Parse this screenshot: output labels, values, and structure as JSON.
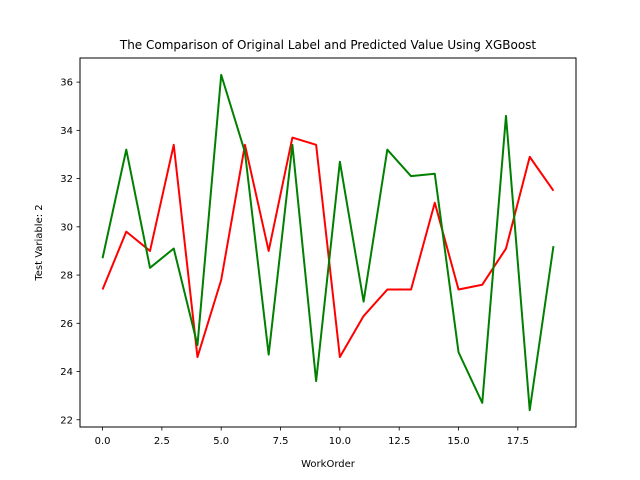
{
  "chart_data": {
    "type": "line",
    "title": "The Comparison of Original Label and Predicted Value Using XGBoost",
    "xlabel": "WorkOrder",
    "ylabel": "Test Variable: 2",
    "xlim": [
      -0.95,
      19.95
    ],
    "ylim": [
      21.7,
      37.0
    ],
    "xticks": [
      0.0,
      2.5,
      5.0,
      7.5,
      10.0,
      12.5,
      15.0,
      17.5
    ],
    "xtick_labels": [
      "0.0",
      "2.5",
      "5.0",
      "7.5",
      "10.0",
      "12.5",
      "15.0",
      "17.5"
    ],
    "yticks": [
      22,
      24,
      26,
      28,
      30,
      32,
      34,
      36
    ],
    "ytick_labels": [
      "22",
      "24",
      "26",
      "28",
      "30",
      "32",
      "34",
      "36"
    ],
    "grid": false,
    "x": [
      0,
      1,
      2,
      3,
      4,
      5,
      6,
      7,
      8,
      9,
      10,
      11,
      12,
      13,
      14,
      15,
      16,
      17,
      18,
      19
    ],
    "series": [
      {
        "color": "#ff0000",
        "values": [
          27.4,
          29.8,
          29.0,
          33.4,
          24.6,
          27.8,
          33.4,
          29.0,
          33.7,
          33.4,
          24.6,
          26.3,
          27.4,
          27.4,
          31.0,
          27.4,
          27.6,
          29.1,
          32.9,
          31.5
        ]
      },
      {
        "color": "#008000",
        "values": [
          28.7,
          33.2,
          28.3,
          29.1,
          25.1,
          36.3,
          33.1,
          24.7,
          33.4,
          23.6,
          32.7,
          26.9,
          33.2,
          32.1,
          32.2,
          24.8,
          22.7,
          34.6,
          22.4,
          29.2
        ]
      }
    ]
  }
}
